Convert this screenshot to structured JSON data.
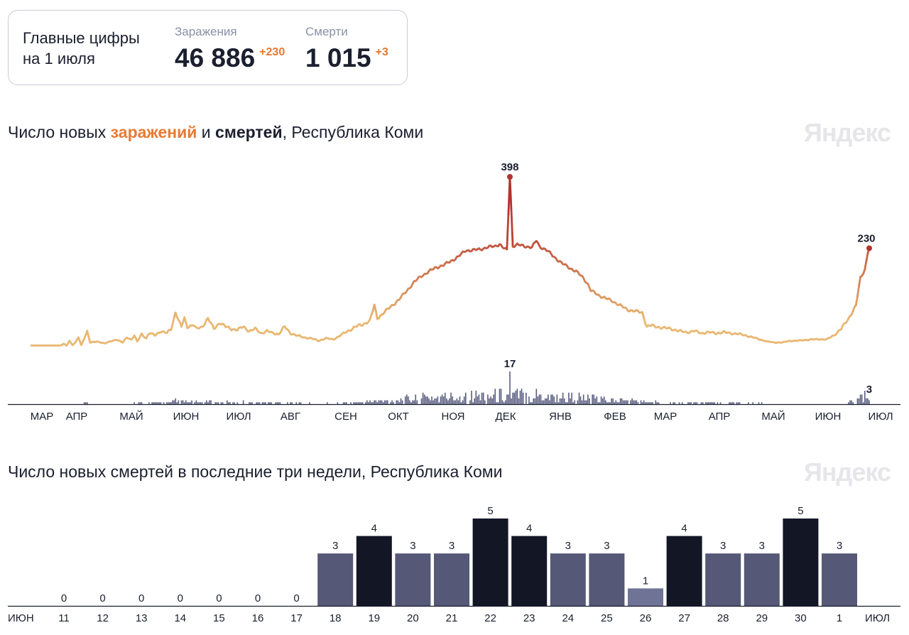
{
  "summary": {
    "heading_line1": "Главные цифры",
    "heading_line2": "на 1 июля",
    "infections_label": "Заражения",
    "infections_value": "46 886",
    "infections_delta": "+230",
    "deaths_label": "Смерти",
    "deaths_value": "1 015",
    "deaths_delta": "+3"
  },
  "chart1": {
    "title_prefix": "Число новых ",
    "title_infections": "заражений",
    "title_and": " и ",
    "title_deaths": "смертей",
    "title_suffix": ", Республика Коми",
    "logo": "Яндекс"
  },
  "chart2": {
    "title": "Число новых смертей в последние три недели, Республика Коми",
    "logo": "Яндекс"
  },
  "colors": {
    "line_low": "#e9b873",
    "line_high": "#b3332c",
    "death_bar": "#5a5e80",
    "bar_dark": "#131625",
    "bar_mid": "#555876",
    "bar_light": "#6f7395",
    "weekend_red": "#d63a2b"
  },
  "chart_data": [
    {
      "type": "line",
      "series": [
        {
          "name": "заражений",
          "anchors": [
            [
              0,
              1
            ],
            [
              20,
              1
            ],
            [
              22,
              5
            ],
            [
              24,
              1
            ],
            [
              26,
              12
            ],
            [
              28,
              2
            ],
            [
              30,
              8
            ],
            [
              32,
              20
            ],
            [
              34,
              2
            ],
            [
              38,
              35
            ],
            [
              40,
              8
            ],
            [
              45,
              10
            ],
            [
              50,
              6
            ],
            [
              55,
              12
            ],
            [
              58,
              15
            ],
            [
              62,
              8
            ],
            [
              65,
              20
            ],
            [
              68,
              15
            ],
            [
              70,
              25
            ],
            [
              72,
              10
            ],
            [
              75,
              28
            ],
            [
              78,
              18
            ],
            [
              80,
              30
            ],
            [
              84,
              25
            ],
            [
              88,
              35
            ],
            [
              92,
              30
            ],
            [
              95,
              40
            ],
            [
              98,
              80
            ],
            [
              100,
              60
            ],
            [
              102,
              45
            ],
            [
              104,
              65
            ],
            [
              106,
              45
            ],
            [
              110,
              50
            ],
            [
              112,
              40
            ],
            [
              116,
              45
            ],
            [
              120,
              65
            ],
            [
              124,
              40
            ],
            [
              128,
              55
            ],
            [
              132,
              45
            ],
            [
              136,
              40
            ],
            [
              140,
              38
            ],
            [
              144,
              45
            ],
            [
              148,
              35
            ],
            [
              152,
              40
            ],
            [
              156,
              30
            ],
            [
              160,
              35
            ],
            [
              164,
              30
            ],
            [
              168,
              28
            ],
            [
              172,
              45
            ],
            [
              176,
              30
            ],
            [
              180,
              25
            ],
            [
              185,
              20
            ],
            [
              190,
              18
            ],
            [
              195,
              12
            ],
            [
              200,
              18
            ],
            [
              205,
              15
            ],
            [
              210,
              25
            ],
            [
              215,
              35
            ],
            [
              220,
              45
            ],
            [
              225,
              50
            ],
            [
              230,
              60
            ],
            [
              233,
              95
            ],
            [
              235,
              65
            ],
            [
              240,
              80
            ],
            [
              245,
              95
            ],
            [
              250,
              110
            ],
            [
              255,
              130
            ],
            [
              260,
              150
            ],
            [
              265,
              165
            ],
            [
              270,
              175
            ],
            [
              275,
              185
            ],
            [
              280,
              190
            ],
            [
              285,
              200
            ],
            [
              290,
              210
            ],
            [
              295,
              225
            ],
            [
              300,
              225
            ],
            [
              305,
              228
            ],
            [
              310,
              232
            ],
            [
              315,
              235
            ],
            [
              318,
              240
            ],
            [
              320,
              232
            ],
            [
              323,
              225
            ],
            [
              325,
              398
            ],
            [
              327,
              235
            ],
            [
              330,
              238
            ],
            [
              335,
              235
            ],
            [
              340,
              232
            ],
            [
              343,
              248
            ],
            [
              345,
              235
            ],
            [
              350,
              225
            ],
            [
              355,
              210
            ],
            [
              360,
              195
            ],
            [
              365,
              185
            ],
            [
              370,
              175
            ],
            [
              375,
              160
            ],
            [
              378,
              145
            ],
            [
              380,
              130
            ],
            [
              385,
              120
            ],
            [
              390,
              112
            ],
            [
              395,
              105
            ],
            [
              400,
              95
            ],
            [
              405,
              85
            ],
            [
              410,
              82
            ],
            [
              415,
              78
            ],
            [
              418,
              45
            ],
            [
              420,
              48
            ],
            [
              425,
              45
            ],
            [
              430,
              42
            ],
            [
              435,
              40
            ],
            [
              440,
              35
            ],
            [
              445,
              32
            ],
            [
              450,
              35
            ],
            [
              455,
              30
            ],
            [
              460,
              32
            ],
            [
              465,
              30
            ],
            [
              470,
              32
            ],
            [
              475,
              30
            ],
            [
              480,
              28
            ],
            [
              485,
              25
            ],
            [
              490,
              20
            ],
            [
              495,
              15
            ],
            [
              500,
              10
            ],
            [
              505,
              8
            ],
            [
              510,
              8
            ],
            [
              515,
              12
            ],
            [
              520,
              12
            ],
            [
              525,
              14
            ],
            [
              530,
              15
            ],
            [
              535,
              16
            ],
            [
              540,
              15
            ],
            [
              545,
              25
            ],
            [
              550,
              40
            ],
            [
              555,
              65
            ],
            [
              560,
              95
            ],
            [
              563,
              160
            ],
            [
              566,
              180
            ],
            [
              568,
              220
            ],
            [
              569,
              230
            ]
          ]
        },
        {
          "name": "смертей",
          "peaks": [
            [
              325,
              17
            ],
            [
              568,
              3
            ]
          ]
        }
      ],
      "x_axis": [
        "МАР",
        "АПР",
        "МАЙ",
        "ИЮН",
        "ИЮЛ",
        "АВГ",
        "СЕН",
        "ОКТ",
        "НОЯ",
        "ДЕК",
        "ЯНВ",
        "ФЕВ",
        "МАР",
        "АПР",
        "МАЙ",
        "ИЮН",
        "ИЮЛ"
      ],
      "annotations": [
        {
          "label": "398",
          "value": 398
        },
        {
          "label": "230",
          "value": 230
        },
        {
          "label": "17",
          "value": 17
        },
        {
          "label": "3",
          "value": 3
        }
      ]
    },
    {
      "type": "bar",
      "categories": [
        "11",
        "12",
        "13",
        "14",
        "15",
        "16",
        "17",
        "18",
        "19",
        "20",
        "21",
        "22",
        "23",
        "24",
        "25",
        "26",
        "27",
        "28",
        "29",
        "30",
        "1"
      ],
      "values": [
        0,
        0,
        0,
        0,
        0,
        0,
        0,
        3,
        4,
        3,
        3,
        5,
        4,
        3,
        3,
        1,
        4,
        3,
        3,
        5,
        3
      ],
      "weekend": [
        false,
        true,
        true,
        false,
        false,
        false,
        false,
        false,
        true,
        true,
        false,
        false,
        false,
        false,
        false,
        true,
        true,
        false,
        false,
        false,
        false
      ],
      "x_start_label": "ИЮН",
      "x_end_label": "ИЮЛ"
    }
  ]
}
